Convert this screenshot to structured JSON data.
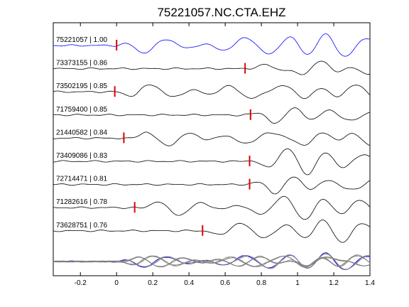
{
  "chart_data": {
    "type": "line",
    "title": "75221057.NC.CTA.EHZ",
    "xlabel": "",
    "ylabel": "",
    "xlim": [
      -0.35,
      1.4
    ],
    "x_ticks": [
      -0.2,
      0,
      0.2,
      0.4,
      0.6,
      0.8,
      1,
      1.2,
      1.4
    ],
    "x_tick_labels": [
      "-0.2",
      "0",
      "0.2",
      "0.4",
      "0.6",
      "0.8",
      "1",
      "1.2",
      "1.4"
    ],
    "grid": false,
    "colors": {
      "reference": "#0000ff",
      "trace": "#000000",
      "pick": "#dd0000",
      "stack": "#808080"
    },
    "series": [
      {
        "event_id": "75221057",
        "cc": "1.00",
        "label": "75221057 | 1.00",
        "pick_time": 0.0,
        "reference": true
      },
      {
        "event_id": "73373155",
        "cc": "0.86",
        "label": "73373155 | 0.86",
        "pick_time": 0.71
      },
      {
        "event_id": "73502195",
        "cc": "0.85",
        "label": "73502195 | 0.85",
        "pick_time": -0.01
      },
      {
        "event_id": "71759400",
        "cc": "0.85",
        "label": "71759400 | 0.85",
        "pick_time": 0.74
      },
      {
        "event_id": "21440582",
        "cc": "0.84",
        "label": "21440582 | 0.84",
        "pick_time": 0.04
      },
      {
        "event_id": "73409086",
        "cc": "0.83",
        "label": "73409086 | 0.83",
        "pick_time": 0.735
      },
      {
        "event_id": "72714471",
        "cc": "0.81",
        "label": "72714471 | 0.81",
        "pick_time": 0.735
      },
      {
        "event_id": "71282616",
        "cc": "0.78",
        "label": "71282616 | 0.78",
        "pick_time": 0.1
      },
      {
        "event_id": "73628751",
        "cc": "0.76",
        "label": "73628751 | 0.76",
        "pick_time": 0.475
      }
    ],
    "overlay": {
      "description_visible": false,
      "traces": 9
    }
  }
}
